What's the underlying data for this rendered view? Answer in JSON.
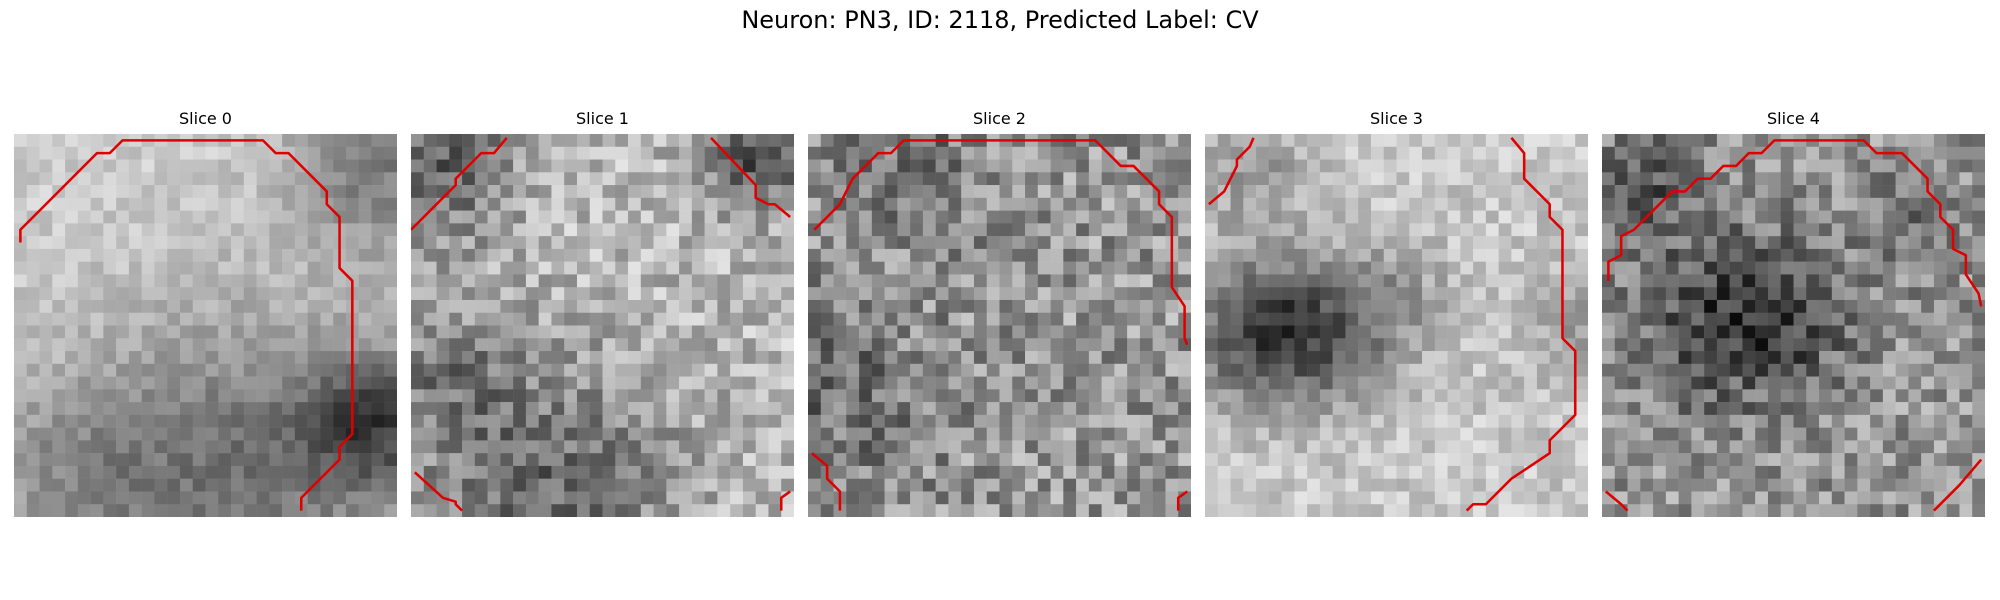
{
  "figure": {
    "title": "Neuron: PN3, ID: 2118, Predicted Label: CV"
  },
  "slices": [
    {
      "label": "Slice 0",
      "contour_color": "#e00000"
    },
    {
      "label": "Slice 1",
      "contour_color": "#e00000"
    },
    {
      "label": "Slice 2",
      "contour_color": "#e00000"
    },
    {
      "label": "Slice 3",
      "contour_color": "#e00000"
    },
    {
      "label": "Slice 4",
      "contour_color": "#e00000"
    }
  ]
}
